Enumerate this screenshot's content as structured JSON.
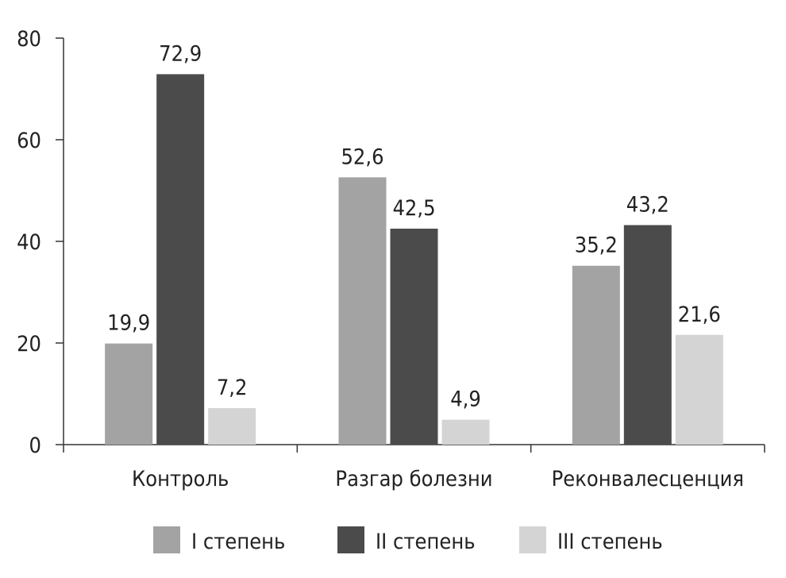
{
  "chart_data": {
    "type": "bar",
    "categories": [
      "Контроль",
      "Разгар болезни",
      "Реконвалесценция"
    ],
    "series": [
      {
        "name": "I степень",
        "values": [
          19.9,
          52.6,
          35.2
        ],
        "labels": [
          "19,9",
          "52,6",
          "35,2"
        ],
        "color": "#a3a3a3"
      },
      {
        "name": "II степень",
        "values": [
          72.9,
          42.5,
          43.2
        ],
        "labels": [
          "72,9",
          "42,5",
          "43,2"
        ],
        "color": "#4b4b4b"
      },
      {
        "name": "III степень",
        "values": [
          7.2,
          4.9,
          21.6
        ],
        "labels": [
          "7,2",
          "4,9",
          "21,6"
        ],
        "color": "#d4d4d4"
      }
    ],
    "title": "",
    "xlabel": "",
    "ylabel": "",
    "ylim": [
      0,
      80
    ],
    "yticks": [
      "0",
      "20",
      "40",
      "60",
      "80"
    ],
    "grid": false,
    "legend_position": "bottom"
  }
}
